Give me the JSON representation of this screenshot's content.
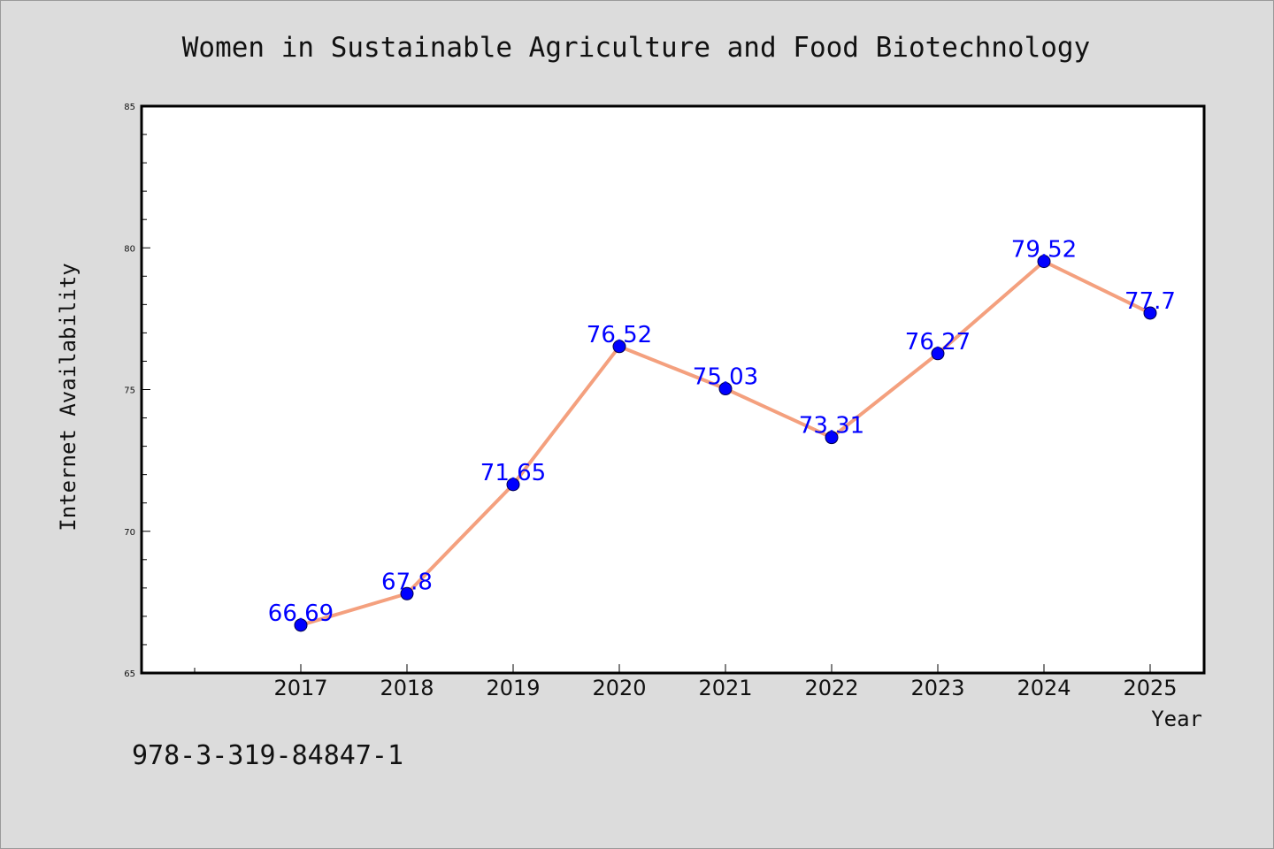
{
  "colors": {
    "background": "#dcdcdc",
    "plot_background": "#ffffff",
    "line": "#f4a07e",
    "marker": "#0000ff",
    "label": "#0000ff",
    "axis": "#000000"
  },
  "footer_text": "978-3-319-84847-1",
  "chart_data": {
    "type": "line",
    "title": "Women in Sustainable Agriculture and Food Biotechnology",
    "xlabel": "Year",
    "ylabel": "Internet Availability",
    "x": [
      "2017",
      "2018",
      "2019",
      "2020",
      "2021",
      "2022",
      "2023",
      "2024",
      "2025"
    ],
    "series": [
      {
        "values": [
          66.69,
          67.8,
          71.65,
          76.52,
          75.03,
          73.31,
          76.27,
          79.52,
          77.7
        ],
        "data_labels": [
          "66.69",
          "67.8",
          "71.65",
          "76.52",
          "75.03",
          "73.31",
          "76.27",
          "79.52",
          "77.7"
        ]
      }
    ],
    "ylim": [
      65,
      85
    ],
    "yticks": [
      "65",
      "70",
      "75",
      "80",
      "85"
    ],
    "grid": false,
    "legend": false
  }
}
